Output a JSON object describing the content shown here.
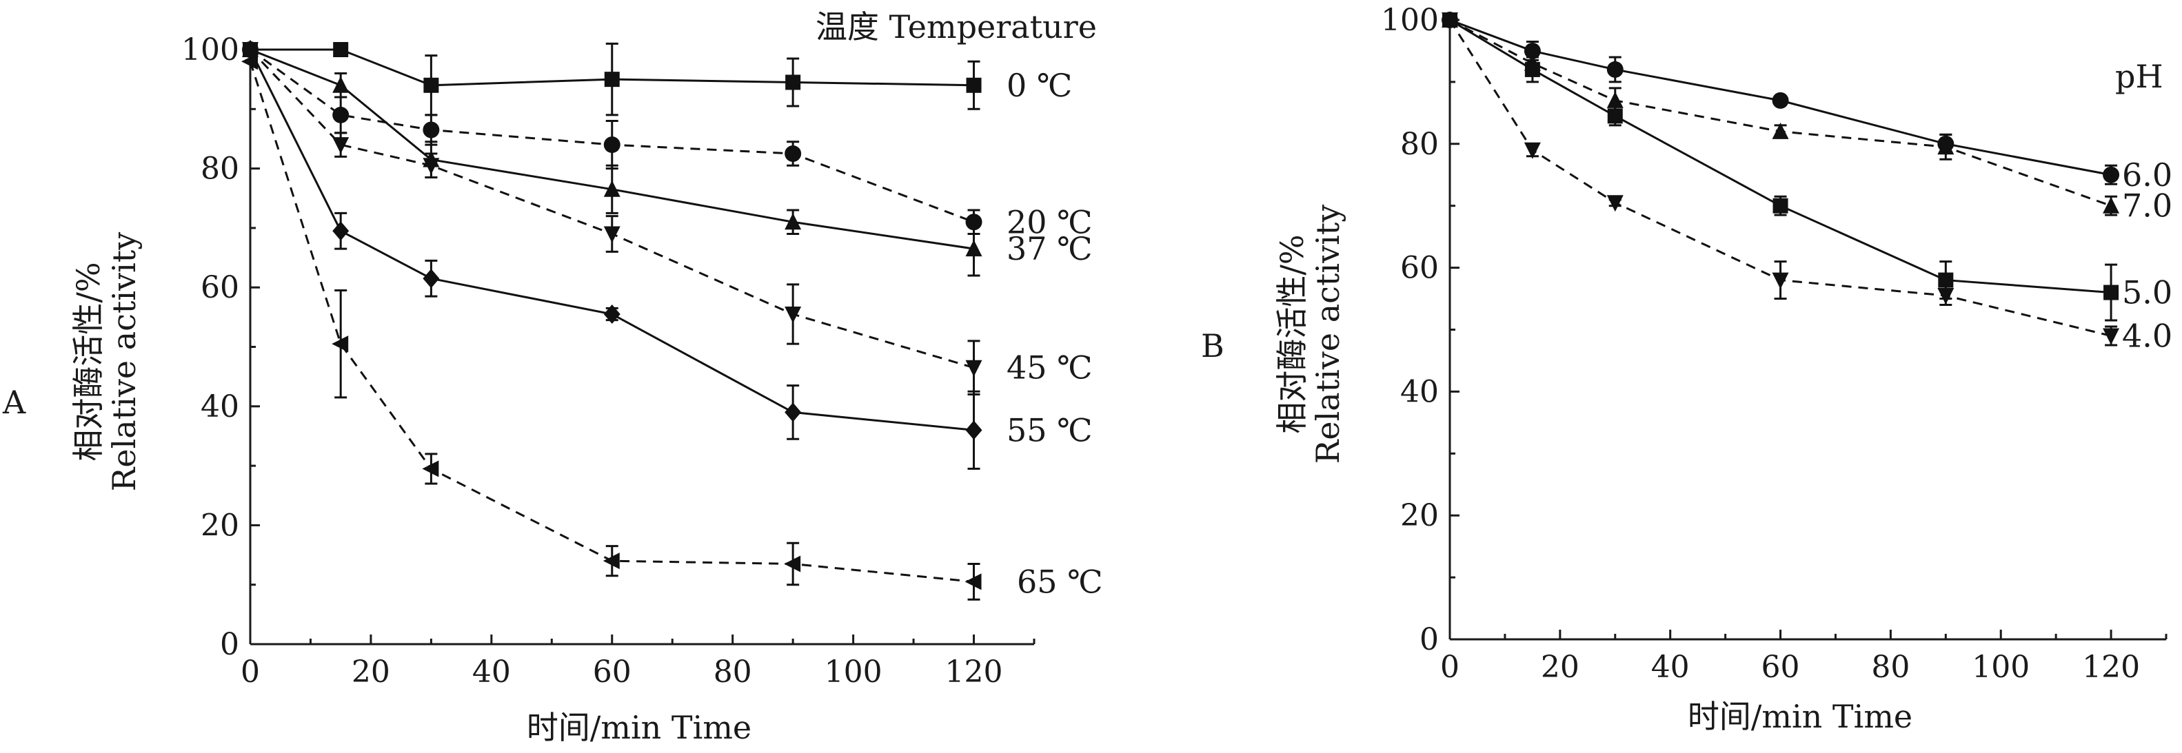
{
  "chart_data": [
    {
      "panel_label": "A",
      "type": "line",
      "legend_title": "温度 Temperature",
      "xlabel": "时间/min  Time",
      "ylabel_cn": "相对酶活性/%",
      "ylabel_en": "Relative activity",
      "xlim": [
        0,
        130
      ],
      "ylim": [
        0,
        100
      ],
      "xticks": [
        "0",
        "20",
        "40",
        "60",
        "80",
        "100",
        "120"
      ],
      "yticks": [
        "0",
        "20",
        "40",
        "60",
        "80",
        "100"
      ],
      "error_bars": true,
      "series": [
        {
          "name": "0 ℃",
          "marker": "square",
          "dash": false,
          "x": [
            0,
            15,
            30,
            60,
            90,
            120
          ],
          "y": [
            100,
            100,
            94,
            95,
            94.5,
            94
          ],
          "err": [
            0,
            0,
            5,
            6,
            4,
            4
          ]
        },
        {
          "name": "20 ℃",
          "marker": "circle",
          "dash": true,
          "x": [
            0,
            15,
            30,
            60,
            90,
            120
          ],
          "y": [
            100,
            89,
            86.5,
            84,
            82.5,
            71
          ],
          "err": [
            0,
            3,
            2.5,
            4,
            2,
            2
          ]
        },
        {
          "name": "37 ℃",
          "marker": "triangle-up",
          "dash": false,
          "x": [
            0,
            15,
            30,
            60,
            90,
            120
          ],
          "y": [
            100,
            94,
            81.5,
            76.5,
            71,
            66.5
          ],
          "err": [
            0,
            2,
            3,
            4,
            2,
            4.5
          ]
        },
        {
          "name": "45 ℃",
          "marker": "triangle-down",
          "dash": true,
          "x": [
            0,
            15,
            30,
            60,
            90,
            120
          ],
          "y": [
            100,
            84,
            80.5,
            69,
            55.5,
            46.5
          ],
          "err": [
            0,
            2,
            2,
            3,
            5,
            4.5
          ]
        },
        {
          "name": "55 ℃",
          "marker": "diamond",
          "dash": false,
          "x": [
            0,
            15,
            30,
            60,
            90,
            120
          ],
          "y": [
            100,
            69.5,
            61.5,
            55.5,
            39,
            36
          ],
          "err": [
            0,
            3,
            3,
            1,
            4.5,
            6.5
          ]
        },
        {
          "name": "65 ℃",
          "marker": "triangle-left",
          "dash": true,
          "x": [
            0,
            15,
            30,
            60,
            90,
            120
          ],
          "y": [
            98,
            50.5,
            29.5,
            14,
            13.5,
            10.5
          ],
          "err": [
            0,
            9,
            2.5,
            2.5,
            3.5,
            3
          ]
        }
      ]
    },
    {
      "panel_label": "B",
      "type": "line",
      "legend_title": "pH",
      "xlabel": "时间/min  Time",
      "ylabel_cn": "相对酶活性/%",
      "ylabel_en": "Relative activity",
      "xlim": [
        0,
        130
      ],
      "ylim": [
        0,
        100
      ],
      "xticks": [
        "0",
        "20",
        "40",
        "60",
        "80",
        "100",
        "120"
      ],
      "yticks": [
        "0",
        "20",
        "40",
        "60",
        "80",
        "100"
      ],
      "error_bars": true,
      "series": [
        {
          "name": "6.0",
          "marker": "circle",
          "dash": false,
          "x": [
            0,
            15,
            30,
            60,
            90,
            120
          ],
          "y": [
            100,
            95,
            92,
            87,
            80,
            75
          ],
          "err": [
            0,
            1.5,
            2,
            0.5,
            1.5,
            1.5
          ]
        },
        {
          "name": "7.0",
          "marker": "triangle-up",
          "dash": true,
          "x": [
            0,
            15,
            30,
            60,
            90,
            120
          ],
          "y": [
            100,
            93,
            87,
            82,
            79.5,
            70
          ],
          "err": [
            0,
            2,
            2,
            1,
            2,
            1.5
          ]
        },
        {
          "name": "5.0",
          "marker": "square",
          "dash": false,
          "x": [
            0,
            15,
            30,
            60,
            90,
            120
          ],
          "y": [
            100,
            92,
            84.5,
            70,
            58,
            56
          ],
          "err": [
            0,
            2,
            1.5,
            1.5,
            3,
            4.5
          ]
        },
        {
          "name": "4.0",
          "marker": "triangle-down",
          "dash": true,
          "x": [
            0,
            15,
            30,
            60,
            90,
            120
          ],
          "y": [
            100,
            79,
            70.5,
            58,
            55.5,
            49
          ],
          "err": [
            0,
            1,
            0.5,
            3,
            1.5,
            1.5
          ]
        }
      ]
    }
  ]
}
